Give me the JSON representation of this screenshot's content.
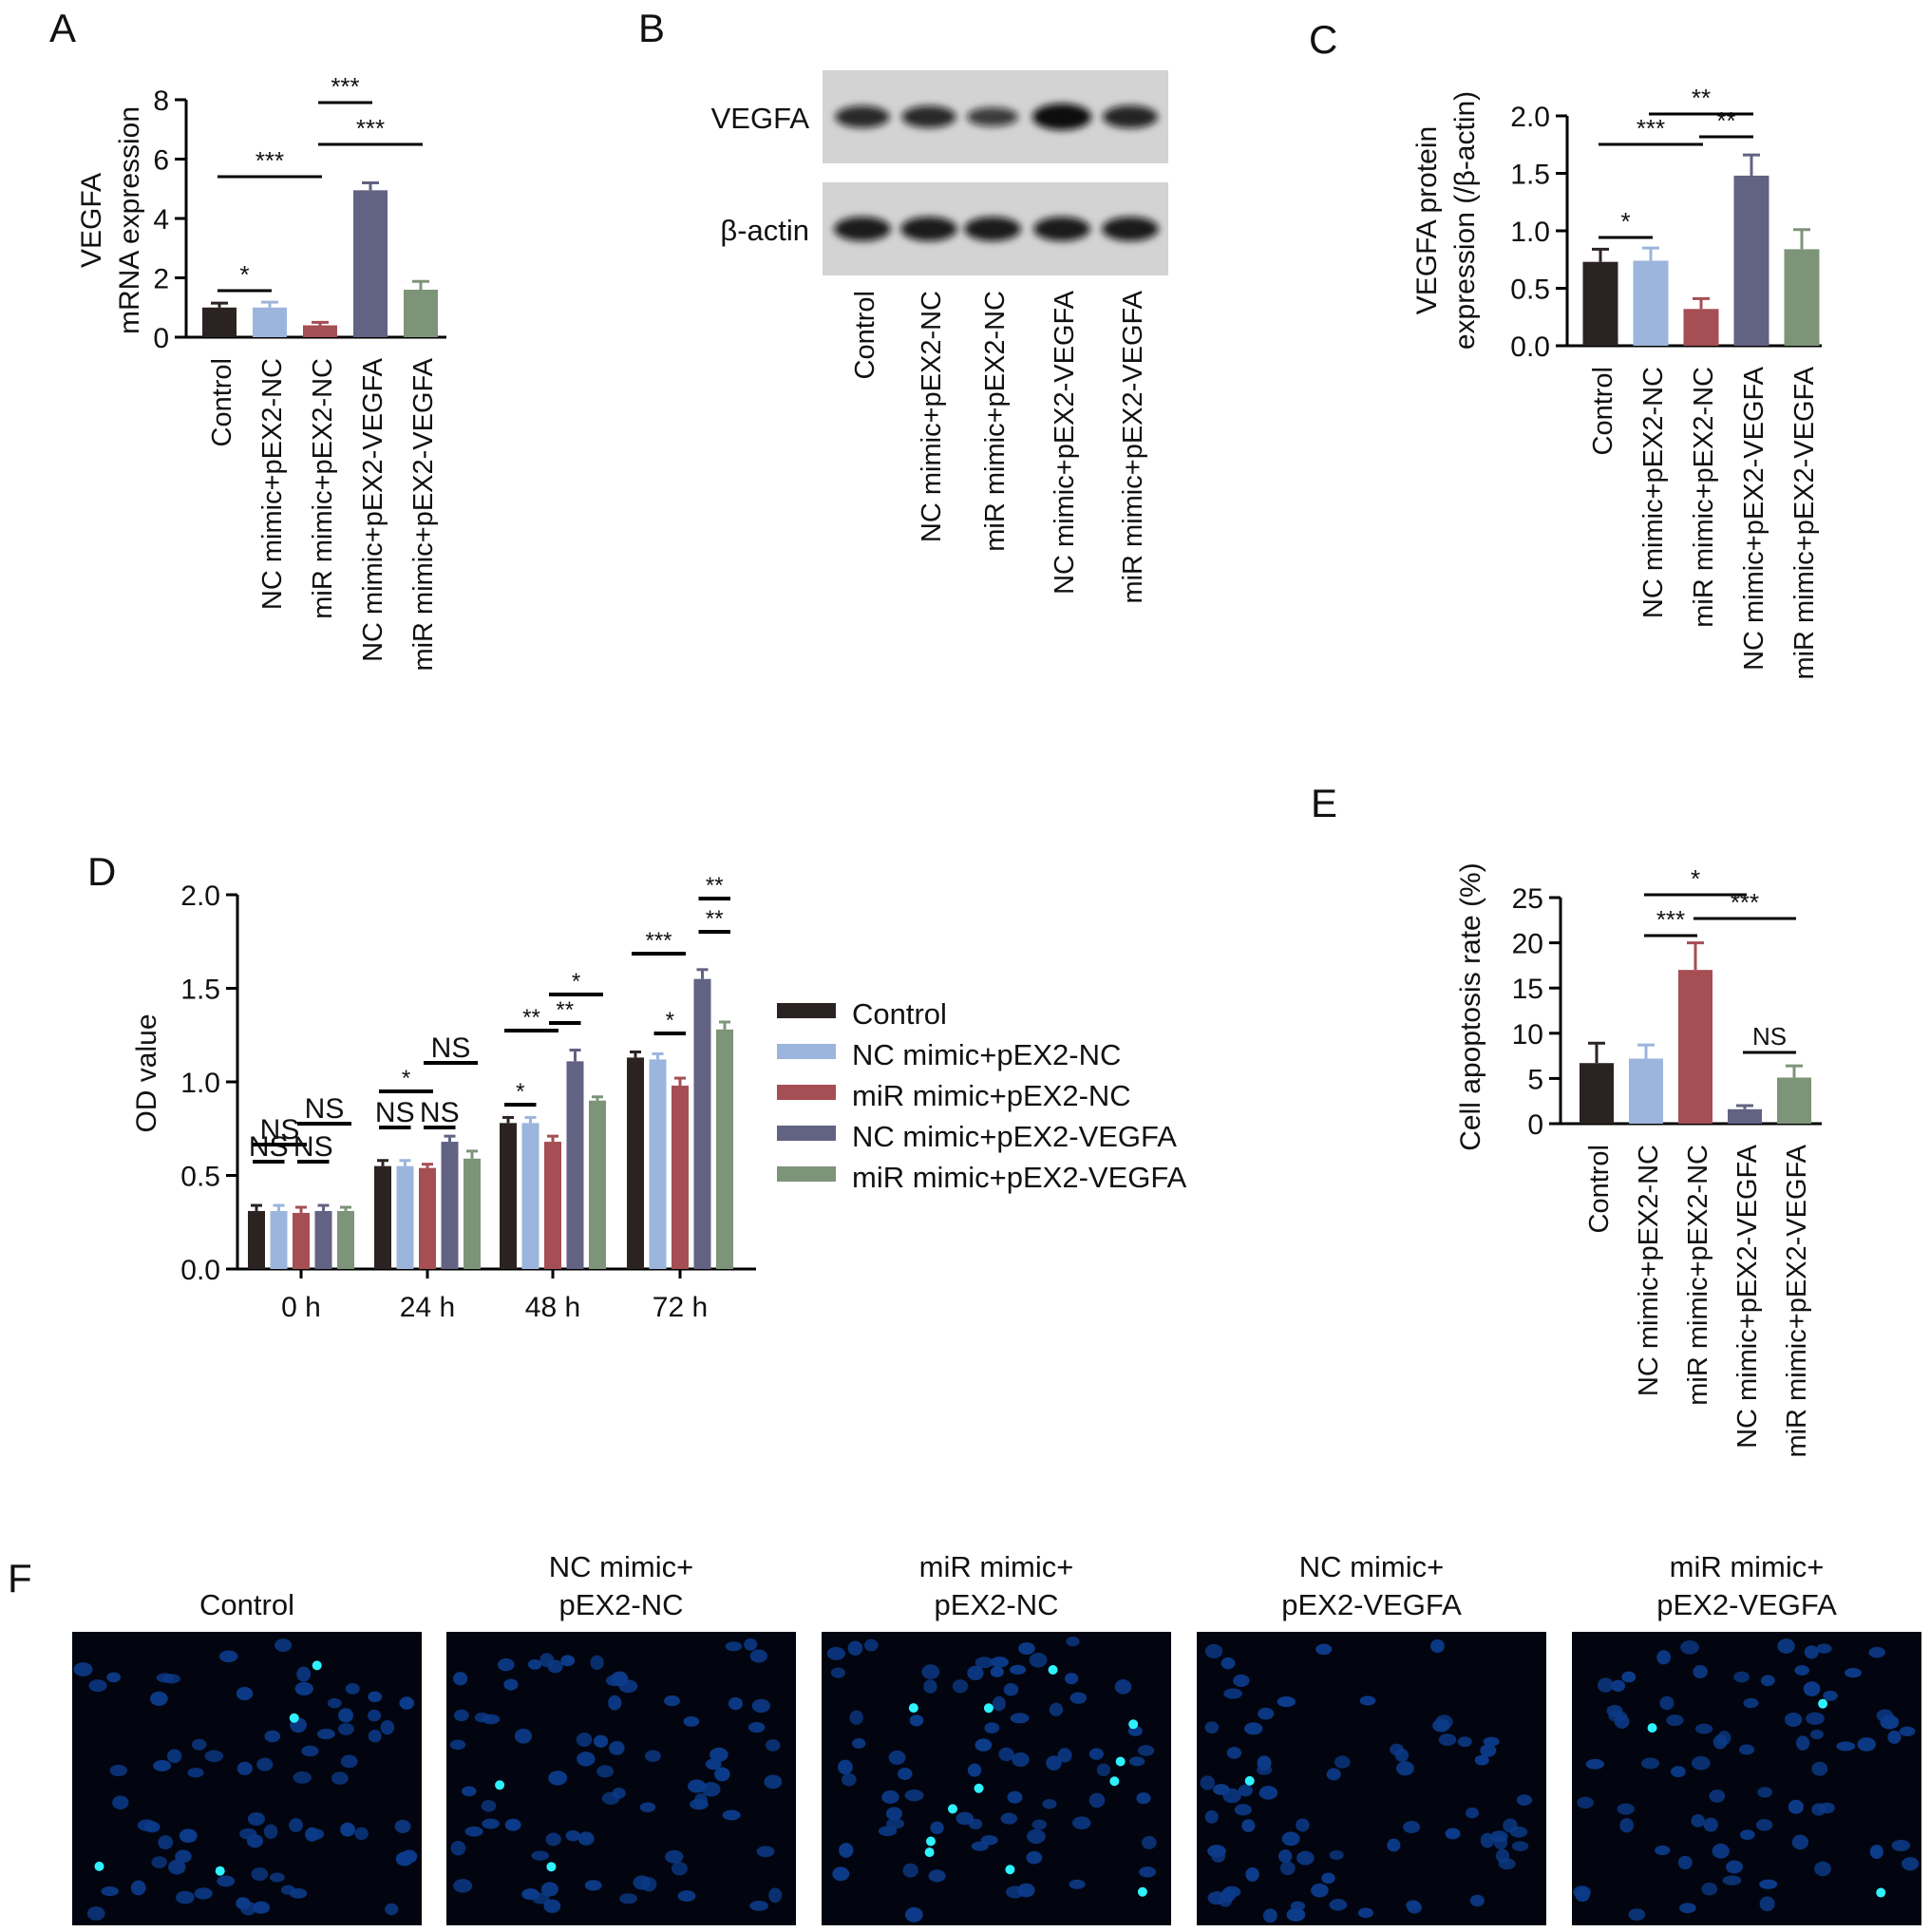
{
  "figure": {
    "colors": {
      "Control": "#2b2322",
      "NC mimic+pEX2-NC": "#9cb5dc",
      "miR mimic+pEX2-NC": "#a54e54",
      "NC mimic+pEX2-VEGFA": "#626283",
      "miR mimic+pEX2-VEGFA": "#7d9478"
    }
  },
  "chart_data": [
    {
      "panel": "A",
      "type": "bar",
      "ylabel": [
        "VEGFA",
        "mRNA expression"
      ],
      "ylim": [
        0,
        8
      ],
      "yticks": [
        "0",
        "2",
        "4",
        "6",
        "8"
      ],
      "categories": [
        "Control",
        "NC mimic+pEX2-NC",
        "miR mimic+pEX2-NC",
        "NC mimic+pEX2-VEGFA",
        "miR mimic+pEX2-VEGFA"
      ],
      "values": [
        1.0,
        1.0,
        0.4,
        4.95,
        1.6
      ],
      "errors": [
        0.15,
        0.18,
        0.1,
        0.25,
        0.28
      ],
      "significance": [
        {
          "from": 1,
          "to": 2,
          "label": "*"
        },
        {
          "from": 1,
          "to": 3,
          "label": "***"
        },
        {
          "from": 3,
          "to": 4,
          "label": "***"
        },
        {
          "from": 3,
          "to": 5,
          "label": "***"
        }
      ]
    },
    {
      "panel": "C",
      "type": "bar",
      "ylabel": [
        "VEGFA protein",
        "expression (/β-actin)"
      ],
      "ylim": [
        0,
        2.0
      ],
      "yticks": [
        "0.0",
        "0.5",
        "1.0",
        "1.5",
        "2.0"
      ],
      "categories": [
        "Control",
        "NC mimic+pEX2-NC",
        "miR mimic+pEX2-NC",
        "NC mimic+pEX2-VEGFA",
        "miR mimic+pEX2-VEGFA"
      ],
      "values": [
        0.73,
        0.74,
        0.32,
        1.48,
        0.84
      ],
      "errors": [
        0.11,
        0.11,
        0.09,
        0.18,
        0.17
      ],
      "significance": [
        {
          "from": 1,
          "to": 2,
          "label": "*"
        },
        {
          "from": 1,
          "to": 3,
          "label": "***"
        },
        {
          "from": 2,
          "to": 4,
          "label": "**"
        },
        {
          "from": 3,
          "to": 4,
          "label": "**"
        }
      ]
    },
    {
      "panel": "D",
      "type": "bar",
      "ylabel": "OD value",
      "ylim": [
        0,
        2.0
      ],
      "yticks": [
        "0.0",
        "0.5",
        "1.0",
        "1.5",
        "2.0"
      ],
      "categories": [
        "0 h",
        "24 h",
        "48 h",
        "72 h"
      ],
      "series": [
        {
          "name": "Control",
          "values": [
            0.31,
            0.55,
            0.78,
            1.13
          ],
          "errors": [
            0.03,
            0.03,
            0.03,
            0.03
          ]
        },
        {
          "name": "NC mimic+pEX2-NC",
          "values": [
            0.31,
            0.55,
            0.78,
            1.12
          ],
          "errors": [
            0.03,
            0.03,
            0.03,
            0.03
          ]
        },
        {
          "name": "miR mimic+pEX2-NC",
          "values": [
            0.3,
            0.54,
            0.68,
            0.98
          ],
          "errors": [
            0.03,
            0.02,
            0.03,
            0.04
          ]
        },
        {
          "name": "NC mimic+pEX2-VEGFA",
          "values": [
            0.31,
            0.68,
            1.11,
            1.55
          ],
          "errors": [
            0.03,
            0.03,
            0.06,
            0.05
          ]
        },
        {
          "name": "miR mimic+pEX2-VEGFA",
          "values": [
            0.31,
            0.59,
            0.9,
            1.28
          ],
          "errors": [
            0.02,
            0.04,
            0.02,
            0.04
          ]
        }
      ],
      "legend": "right",
      "significance": [
        {
          "group": 0,
          "from": 1,
          "to": 2,
          "label": "NS"
        },
        {
          "group": 0,
          "from": 1,
          "to": 3,
          "label": "NS"
        },
        {
          "group": 0,
          "from": 3,
          "to": 4,
          "label": "NS"
        },
        {
          "group": 0,
          "from": 3,
          "to": 5,
          "label": "NS"
        },
        {
          "group": 1,
          "from": 1,
          "to": 2,
          "label": "NS"
        },
        {
          "group": 1,
          "from": 1,
          "to": 3,
          "label": "*"
        },
        {
          "group": 1,
          "from": 3,
          "to": 4,
          "label": "NS"
        },
        {
          "group": 1,
          "from": 3,
          "to": 5,
          "label": "NS"
        },
        {
          "group": 2,
          "from": 1,
          "to": 2,
          "label": "*"
        },
        {
          "group": 2,
          "from": 1,
          "to": 3,
          "label": "**"
        },
        {
          "group": 2,
          "from": 3,
          "to": 4,
          "label": "**"
        },
        {
          "group": 2,
          "from": 3,
          "to": 5,
          "label": "*"
        },
        {
          "group": 3,
          "from": 2,
          "to": 3,
          "label": "*"
        },
        {
          "group": 3,
          "from": 1,
          "to": 3,
          "label": "***"
        },
        {
          "group": 3,
          "from": 4,
          "to": 5,
          "label": "**"
        },
        {
          "group": 3,
          "from": 4,
          "to": 5,
          "label": "**"
        }
      ]
    },
    {
      "panel": "E",
      "type": "bar",
      "ylabel": "Cell apoptosis rate (%)",
      "ylim": [
        0,
        25
      ],
      "yticks": [
        "0",
        "5",
        "10",
        "15",
        "20",
        "25"
      ],
      "categories": [
        "Control",
        "NC mimic+pEX2-NC",
        "miR mimic+pEX2-NC",
        "NC mimic+pEX2-VEGFA",
        "miR mimic+pEX2-VEGFA"
      ],
      "values": [
        6.7,
        7.2,
        17.0,
        1.6,
        5.1
      ],
      "errors": [
        2.2,
        1.5,
        3.0,
        0.4,
        1.3
      ],
      "significance": [
        {
          "from": 2,
          "to": 3,
          "label": "***"
        },
        {
          "from": 2,
          "to": 4,
          "label": "*"
        },
        {
          "from": 3,
          "to": 5,
          "label": "***"
        },
        {
          "from": 4,
          "to": 5,
          "label": "NS"
        }
      ]
    }
  ],
  "panel_b": {
    "letter": "B",
    "bands": [
      {
        "name": "VEGFA",
        "intensities": [
          0.7,
          0.7,
          0.5,
          1.0,
          0.75
        ]
      },
      {
        "name": "β-actin",
        "intensities": [
          0.85,
          0.85,
          0.85,
          0.85,
          0.85
        ]
      }
    ],
    "lanes": [
      "Control",
      "NC mimic+pEX2-NC",
      "miR mimic+pEX2-NC",
      "NC mimic+pEX2-VEGFA",
      "miR mimic+pEX2-VEGFA"
    ]
  },
  "panel_f": {
    "letter": "F",
    "images": [
      {
        "title": [
          "Control"
        ]
      },
      {
        "title": [
          "NC mimic+",
          "pEX2-NC"
        ]
      },
      {
        "title": [
          "miR mimic+",
          "pEX2-NC"
        ]
      },
      {
        "title": [
          "NC mimic+",
          "pEX2-VEGFA"
        ]
      },
      {
        "title": [
          "miR mimic+",
          "pEX2-VEGFA"
        ]
      }
    ]
  }
}
